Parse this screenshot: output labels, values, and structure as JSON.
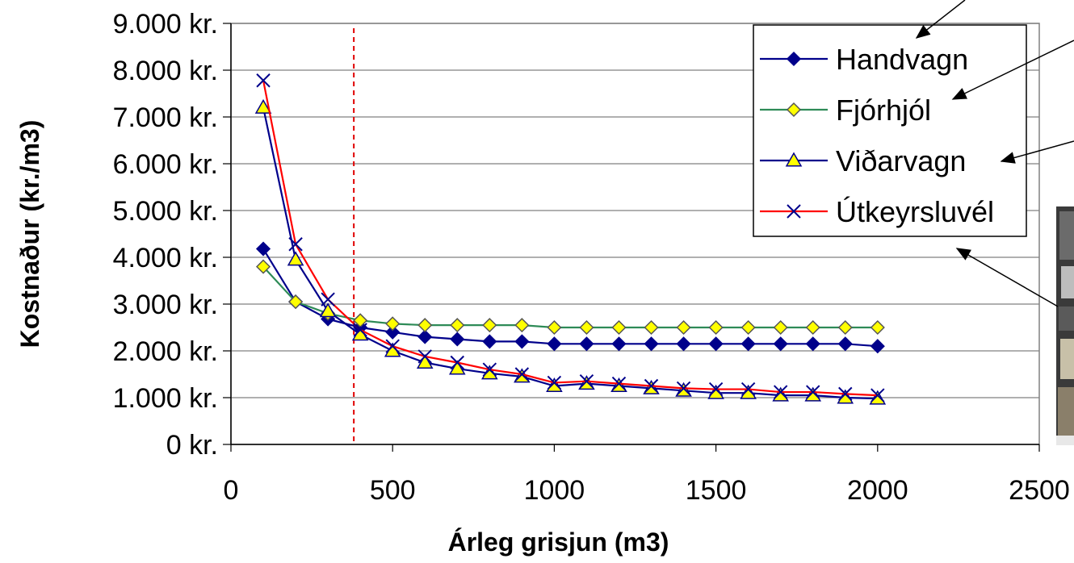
{
  "chart_data": {
    "type": "line",
    "title": "",
    "xlabel": "Árleg grisjun (m3)",
    "ylabel": "Kostnaður (kr./m3)",
    "xlim": [
      0,
      2500
    ],
    "ylim": [
      0,
      9000
    ],
    "x_ticks": [
      0,
      500,
      1000,
      1500,
      2000,
      2500
    ],
    "x_tick_labels": [
      "0",
      "500",
      "1000",
      "1500",
      "2000",
      "2500"
    ],
    "y_ticks": [
      0,
      1000,
      2000,
      3000,
      4000,
      5000,
      6000,
      7000,
      8000,
      9000
    ],
    "y_tick_labels": [
      "0 kr.",
      "1.000 kr.",
      "2.000 kr.",
      "3.000 kr.",
      "4.000 kr.",
      "5.000 kr.",
      "6.000 kr.",
      "7.000 kr.",
      "8.000 kr.",
      "9.000 kr."
    ],
    "grid": "horizontal",
    "legend_position": "top-right",
    "reference_line": {
      "x": 380,
      "color": "#e00000",
      "style": "dashed"
    },
    "x": [
      100,
      200,
      300,
      400,
      500,
      600,
      700,
      800,
      900,
      1000,
      1100,
      1200,
      1300,
      1400,
      1500,
      1600,
      1700,
      1800,
      1900,
      2000
    ],
    "series": [
      {
        "name": "Handvagn",
        "color": "#00008b",
        "marker": "diamond-filled",
        "marker_fill": "#00008b",
        "values": [
          4180,
          3050,
          2680,
          2500,
          2400,
          2300,
          2250,
          2200,
          2200,
          2150,
          2150,
          2150,
          2150,
          2150,
          2150,
          2150,
          2150,
          2150,
          2150,
          2100
        ]
      },
      {
        "name": "Fjórhjól",
        "color": "#2e8b57",
        "marker": "diamond-open",
        "marker_fill": "#ffff00",
        "values": [
          3800,
          3050,
          2800,
          2650,
          2580,
          2550,
          2550,
          2550,
          2550,
          2500,
          2500,
          2500,
          2500,
          2500,
          2500,
          2500,
          2500,
          2500,
          2500,
          2500
        ]
      },
      {
        "name": "Viðarvagn",
        "color": "#00008b",
        "marker": "triangle",
        "marker_fill": "#ffff00",
        "values": [
          7200,
          3950,
          2850,
          2350,
          2000,
          1750,
          1620,
          1520,
          1450,
          1250,
          1300,
          1250,
          1200,
          1150,
          1100,
          1100,
          1050,
          1050,
          1000,
          980
        ]
      },
      {
        "name": "Útkeyrsluvél",
        "color": "#ff0000",
        "marker": "x",
        "marker_fill": "#00008b",
        "values": [
          7780,
          4280,
          3100,
          2450,
          2100,
          1880,
          1750,
          1600,
          1500,
          1320,
          1350,
          1300,
          1250,
          1200,
          1180,
          1180,
          1120,
          1120,
          1080,
          1050
        ]
      }
    ]
  }
}
